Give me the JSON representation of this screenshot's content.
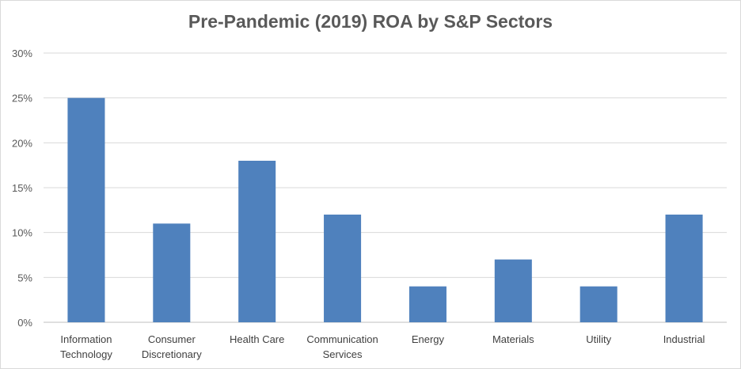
{
  "chart_data": {
    "type": "bar",
    "title": "Pre-Pandemic (2019) ROA by S&P Sectors",
    "xlabel": "",
    "ylabel": "",
    "categories": [
      [
        "Information",
        "Technology"
      ],
      [
        "Consumer",
        "Discretionary"
      ],
      [
        "Health Care"
      ],
      [
        "Communication",
        "Services"
      ],
      [
        "Energy"
      ],
      [
        "Materials"
      ],
      [
        "Utility"
      ],
      [
        "Industrial"
      ]
    ],
    "values": [
      0.25,
      0.11,
      0.18,
      0.12,
      0.04,
      0.07,
      0.04,
      0.12
    ],
    "ylim": [
      0,
      0.3
    ],
    "yticks": [
      0,
      0.05,
      0.1,
      0.15,
      0.2,
      0.25,
      0.3
    ],
    "ytick_labels": [
      "0%",
      "5%",
      "10%",
      "15%",
      "20%",
      "25%",
      "30%"
    ],
    "grid": true,
    "legend": "none",
    "colors": {
      "bar": "#4f81bd",
      "grid": "#d9d9d9",
      "axis": "#bfbfbf",
      "text": "#595959"
    }
  }
}
